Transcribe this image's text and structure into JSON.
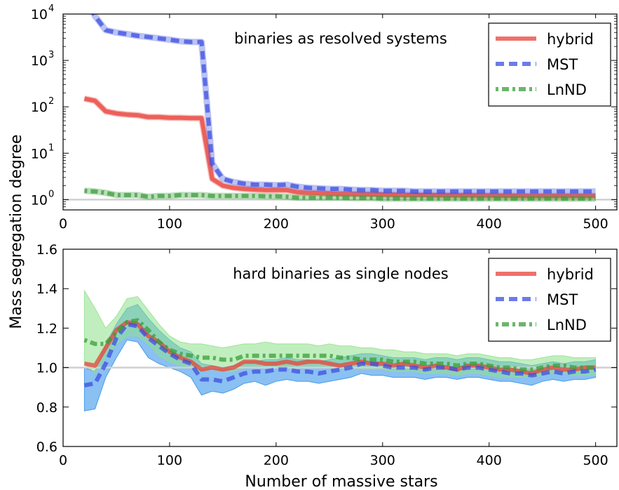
{
  "figure": {
    "ylabel": "Mass segregation degree",
    "xlabel": "Number of massive stars"
  },
  "chart_data": [
    {
      "type": "line",
      "panel": "top",
      "annotation": "binaries as resolved systems",
      "y_scale": "log",
      "xlim": [
        0,
        520
      ],
      "ylim": [
        0.6,
        10000
      ],
      "x_ticks": [
        0,
        100,
        200,
        300,
        400,
        500
      ],
      "y_ticks": [
        {
          "value": 1,
          "label": "10",
          "exp": "0"
        },
        {
          "value": 10,
          "label": "10",
          "exp": "1"
        },
        {
          "value": 100,
          "label": "10",
          "exp": "2"
        },
        {
          "value": 1000,
          "label": "10",
          "exp": "3"
        },
        {
          "value": 10000,
          "label": "10",
          "exp": "4"
        }
      ],
      "reference_line": 1.0,
      "legend_position": "top-right",
      "series": [
        {
          "name": "hybrid",
          "style": "solid",
          "color": "#e8413a",
          "x": [
            20,
            30,
            40,
            50,
            60,
            70,
            80,
            90,
            100,
            110,
            120,
            130,
            140,
            150,
            160,
            170,
            180,
            190,
            200,
            210,
            220,
            230,
            240,
            250,
            260,
            270,
            280,
            290,
            300,
            310,
            320,
            330,
            340,
            350,
            360,
            370,
            380,
            390,
            400,
            410,
            420,
            430,
            440,
            450,
            460,
            470,
            480,
            490,
            500
          ],
          "y": [
            150,
            135,
            80,
            72,
            68,
            66,
            60,
            60,
            58,
            58,
            57,
            57,
            2.8,
            2.0,
            1.8,
            1.7,
            1.65,
            1.6,
            1.6,
            1.6,
            1.45,
            1.4,
            1.38,
            1.35,
            1.33,
            1.32,
            1.3,
            1.3,
            1.28,
            1.27,
            1.26,
            1.25,
            1.25,
            1.24,
            1.24,
            1.23,
            1.23,
            1.22,
            1.22,
            1.21,
            1.21,
            1.2,
            1.2,
            1.2,
            1.2,
            1.2,
            1.2,
            1.2,
            1.2
          ]
        },
        {
          "name": "MST",
          "style": "dashed",
          "color": "#3b4fe0",
          "x": [
            20,
            30,
            40,
            50,
            60,
            70,
            80,
            90,
            100,
            110,
            120,
            130,
            140,
            150,
            160,
            170,
            180,
            190,
            200,
            210,
            220,
            230,
            240,
            250,
            260,
            270,
            280,
            290,
            300,
            310,
            320,
            330,
            340,
            350,
            360,
            370,
            380,
            390,
            400,
            410,
            420,
            430,
            440,
            450,
            460,
            470,
            480,
            490,
            500
          ],
          "y": [
            25000,
            9000,
            4500,
            4000,
            3700,
            3400,
            3200,
            3000,
            2800,
            2600,
            2500,
            2500,
            6.0,
            2.8,
            2.4,
            2.2,
            2.1,
            2.1,
            2.05,
            2.1,
            1.9,
            1.8,
            1.75,
            1.7,
            1.7,
            1.65,
            1.6,
            1.6,
            1.55,
            1.55,
            1.55,
            1.5,
            1.5,
            1.5,
            1.5,
            1.5,
            1.5,
            1.5,
            1.5,
            1.5,
            1.5,
            1.5,
            1.5,
            1.5,
            1.5,
            1.5,
            1.5,
            1.5,
            1.5
          ]
        },
        {
          "name": "LnND",
          "style": "dashdot",
          "color": "#3a9e3a",
          "x": [
            20,
            30,
            40,
            50,
            60,
            70,
            80,
            90,
            100,
            110,
            120,
            130,
            140,
            150,
            160,
            170,
            180,
            190,
            200,
            210,
            220,
            230,
            240,
            250,
            260,
            270,
            280,
            290,
            300,
            310,
            320,
            330,
            340,
            350,
            360,
            370,
            380,
            390,
            400,
            410,
            420,
            430,
            440,
            450,
            460,
            470,
            480,
            490,
            500
          ],
          "y": [
            1.55,
            1.5,
            1.4,
            1.25,
            1.25,
            1.25,
            1.15,
            1.2,
            1.2,
            1.25,
            1.25,
            1.25,
            1.2,
            1.2,
            1.2,
            1.2,
            1.2,
            1.18,
            1.18,
            1.15,
            1.1,
            1.1,
            1.1,
            1.1,
            1.1,
            1.08,
            1.08,
            1.08,
            1.05,
            1.05,
            1.05,
            1.05,
            1.05,
            1.05,
            1.05,
            1.05,
            1.05,
            1.05,
            1.05,
            1.05,
            1.05,
            1.05,
            1.05,
            1.05,
            1.05,
            1.05,
            1.05,
            1.05,
            1.05
          ]
        }
      ]
    },
    {
      "type": "line",
      "panel": "bottom",
      "annotation": "hard binaries as single nodes",
      "y_scale": "linear",
      "xlim": [
        0,
        520
      ],
      "ylim": [
        0.6,
        1.6
      ],
      "x_ticks": [
        0,
        100,
        200,
        300,
        400,
        500
      ],
      "y_ticks": [
        0.6,
        0.8,
        1.0,
        1.2,
        1.4,
        1.6
      ],
      "y_tick_labels": [
        "0.6",
        "0.8",
        "1.0",
        "1.2",
        "1.4",
        "1.6"
      ],
      "reference_line": 1.0,
      "legend_position": "top-right",
      "x": [
        20,
        30,
        40,
        50,
        60,
        70,
        80,
        90,
        100,
        110,
        120,
        130,
        140,
        150,
        160,
        170,
        180,
        190,
        200,
        210,
        220,
        230,
        240,
        250,
        260,
        270,
        280,
        290,
        300,
        310,
        320,
        330,
        340,
        350,
        360,
        370,
        380,
        390,
        400,
        410,
        420,
        430,
        440,
        450,
        460,
        470,
        480,
        490,
        500
      ],
      "series": [
        {
          "name": "hybrid",
          "style": "solid",
          "color": "#e8413a",
          "y": [
            1.02,
            1.01,
            1.1,
            1.19,
            1.23,
            1.22,
            1.16,
            1.13,
            1.08,
            1.05,
            1.03,
            0.99,
            1.0,
            0.99,
            1.0,
            1.03,
            1.03,
            1.02,
            1.02,
            1.03,
            1.02,
            1.03,
            1.03,
            1.02,
            1.01,
            1.02,
            1.03,
            1.02,
            1.02,
            1.01,
            1.02,
            1.01,
            1.0,
            1.01,
            1.0,
            0.99,
            1.01,
            1.01,
            1.0,
            0.99,
            0.99,
            0.98,
            0.97,
            0.99,
            1.0,
            0.99,
            0.99,
            1.0,
            1.0
          ]
        },
        {
          "name": "MST",
          "style": "dashed",
          "color": "#3b4fe0",
          "y": [
            0.91,
            0.92,
            1.02,
            1.15,
            1.22,
            1.21,
            1.15,
            1.11,
            1.07,
            1.04,
            1.02,
            0.94,
            0.94,
            0.93,
            0.95,
            0.97,
            0.98,
            0.98,
            0.99,
            0.99,
            0.98,
            0.98,
            0.97,
            0.98,
            0.99,
            1.0,
            1.02,
            1.02,
            1.01,
            1.0,
            1.0,
            1.0,
            0.99,
            1.0,
            1.0,
            0.99,
            1.0,
            1.0,
            0.99,
            0.98,
            0.97,
            0.97,
            0.96,
            0.97,
            0.98,
            0.97,
            0.98,
            0.98,
            0.99
          ]
        },
        {
          "name": "LnND",
          "style": "dashdot",
          "color": "#3a9e3a",
          "y": [
            1.14,
            1.12,
            1.12,
            1.18,
            1.23,
            1.24,
            1.19,
            1.13,
            1.09,
            1.07,
            1.06,
            1.05,
            1.05,
            1.04,
            1.04,
            1.06,
            1.06,
            1.06,
            1.06,
            1.06,
            1.06,
            1.06,
            1.06,
            1.06,
            1.05,
            1.05,
            1.04,
            1.04,
            1.04,
            1.03,
            1.03,
            1.03,
            1.02,
            1.02,
            1.02,
            1.01,
            1.02,
            1.02,
            1.01,
            1.0,
            1.0,
            0.99,
            0.99,
            1.0,
            1.01,
            1.01,
            1.0,
            1.0,
            1.0
          ]
        }
      ],
      "bands": [
        {
          "series": "MST",
          "color": "#2a8ce8",
          "lower": [
            0.78,
            0.79,
            0.95,
            1.05,
            1.14,
            1.13,
            1.05,
            1.02,
            1.0,
            0.98,
            0.95,
            0.86,
            0.88,
            0.87,
            0.89,
            0.92,
            0.93,
            0.91,
            0.93,
            0.94,
            0.93,
            0.93,
            0.92,
            0.93,
            0.94,
            0.95,
            0.97,
            0.96,
            0.96,
            0.95,
            0.95,
            0.95,
            0.94,
            0.95,
            0.95,
            0.94,
            0.95,
            0.95,
            0.94,
            0.93,
            0.93,
            0.92,
            0.91,
            0.93,
            0.94,
            0.93,
            0.94,
            0.94,
            0.95
          ],
          "upper": [
            1.0,
            0.98,
            1.12,
            1.22,
            1.3,
            1.32,
            1.25,
            1.19,
            1.14,
            1.1,
            1.08,
            1.02,
            1.01,
            1.0,
            1.01,
            1.03,
            1.03,
            1.04,
            1.04,
            1.05,
            1.04,
            1.04,
            1.03,
            1.04,
            1.05,
            1.06,
            1.07,
            1.07,
            1.06,
            1.05,
            1.05,
            1.05,
            1.04,
            1.05,
            1.05,
            1.04,
            1.05,
            1.05,
            1.04,
            1.03,
            1.03,
            1.02,
            1.01,
            1.02,
            1.03,
            1.02,
            1.03,
            1.03,
            1.04
          ]
        },
        {
          "series": "LnND",
          "color": "#8ee08a",
          "lower": [
            1.02,
            0.97,
            1.05,
            1.12,
            1.16,
            1.16,
            1.12,
            1.06,
            1.03,
            1.01,
            1.0,
            0.98,
            0.99,
            0.98,
            0.98,
            1.0,
            1.0,
            1.0,
            1.0,
            1.0,
            1.0,
            1.0,
            1.0,
            1.0,
            0.99,
            0.99,
            0.99,
            0.99,
            0.99,
            0.98,
            0.98,
            0.98,
            0.97,
            0.97,
            0.97,
            0.96,
            0.97,
            0.97,
            0.96,
            0.95,
            0.95,
            0.95,
            0.95,
            0.96,
            0.97,
            0.97,
            0.96,
            0.96,
            0.96
          ],
          "upper": [
            1.39,
            1.3,
            1.2,
            1.26,
            1.35,
            1.36,
            1.29,
            1.22,
            1.16,
            1.13,
            1.12,
            1.12,
            1.11,
            1.1,
            1.11,
            1.12,
            1.12,
            1.13,
            1.12,
            1.12,
            1.12,
            1.12,
            1.11,
            1.12,
            1.11,
            1.11,
            1.1,
            1.1,
            1.09,
            1.09,
            1.08,
            1.08,
            1.07,
            1.07,
            1.07,
            1.06,
            1.07,
            1.07,
            1.06,
            1.05,
            1.05,
            1.04,
            1.04,
            1.05,
            1.06,
            1.06,
            1.05,
            1.05,
            1.05
          ]
        }
      ]
    }
  ]
}
